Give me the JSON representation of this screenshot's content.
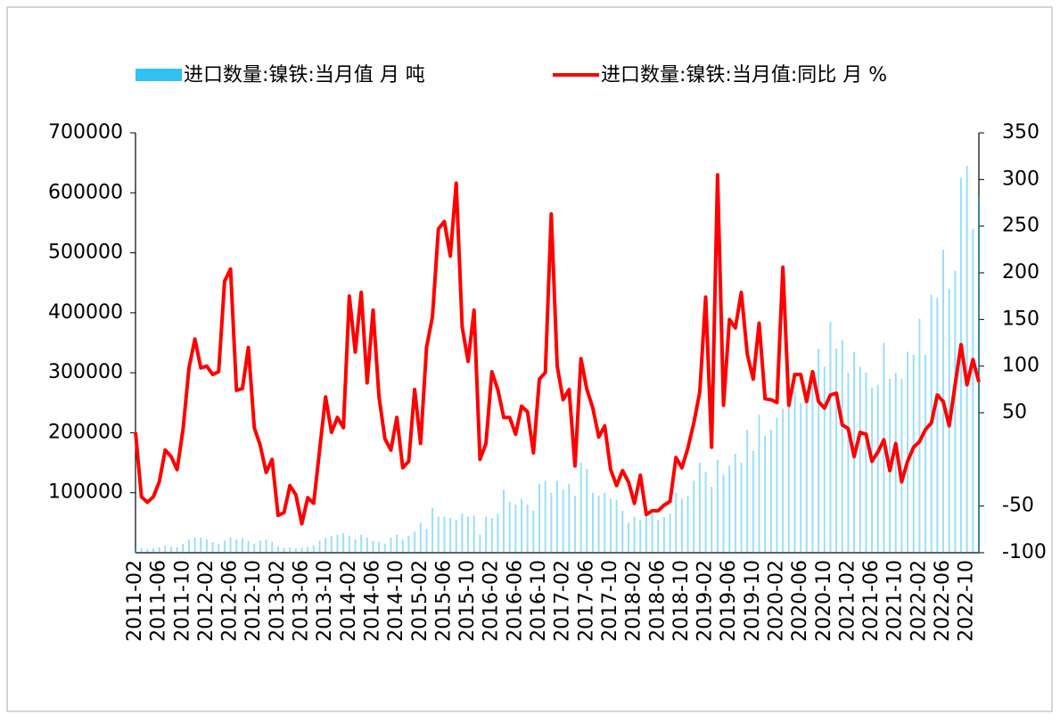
{
  "chart_data": {
    "type": "bar+line",
    "categories": [
      "2011-02",
      null,
      null,
      null,
      "2011-06",
      null,
      null,
      null,
      "2011-10",
      null,
      null,
      null,
      "2012-02",
      null,
      null,
      null,
      "2012-06",
      null,
      null,
      null,
      "2012-10",
      null,
      null,
      null,
      "2013-02",
      null,
      null,
      null,
      "2013-06",
      null,
      null,
      null,
      "2013-10",
      null,
      null,
      null,
      "2014-02",
      null,
      null,
      null,
      "2014-06",
      null,
      null,
      null,
      "2014-10",
      null,
      null,
      null,
      "2015-02",
      null,
      null,
      null,
      "2015-06",
      null,
      null,
      null,
      "2015-10",
      null,
      null,
      null,
      "2016-02",
      null,
      null,
      null,
      "2016-06",
      null,
      null,
      null,
      "2016-10",
      null,
      null,
      null,
      "2017-02",
      null,
      null,
      null,
      "2017-06",
      null,
      null,
      null,
      "2017-10",
      null,
      null,
      null,
      "2018-02",
      null,
      null,
      null,
      "2018-06",
      null,
      null,
      null,
      "2018-10",
      null,
      null,
      null,
      "2019-02",
      null,
      null,
      null,
      "2019-06",
      null,
      null,
      null,
      "2019-10",
      null,
      null,
      null,
      "2020-02",
      null,
      null,
      null,
      "2020-06",
      null,
      null,
      null,
      "2020-10",
      null,
      null,
      null,
      "2021-02",
      null,
      null,
      null,
      "2021-06",
      null,
      null,
      null,
      "2021-10",
      null,
      null,
      null,
      "2022-02",
      null,
      null,
      null,
      "2022-06",
      null,
      null,
      null,
      "2022-10",
      null,
      null
    ],
    "series": [
      {
        "name": "进口数量:镍铁:当月值 月 吨",
        "type": "bar",
        "color": "#00b0f0",
        "values": [
          10000,
          8000,
          6000,
          7000,
          9000,
          12000,
          10000,
          9000,
          15000,
          22000,
          25000,
          25000,
          22000,
          18000,
          15000,
          20000,
          25000,
          22000,
          24000,
          20000,
          15000,
          20000,
          22000,
          18000,
          10000,
          8000,
          9000,
          7000,
          8000,
          10000,
          12000,
          20000,
          25000,
          28000,
          30000,
          32000,
          28000,
          22000,
          30000,
          25000,
          20000,
          18000,
          15000,
          25000,
          30000,
          22000,
          28000,
          35000,
          50000,
          40000,
          75000,
          60000,
          60000,
          58000,
          55000,
          65000,
          60000,
          62000,
          30000,
          60000,
          58000,
          65000,
          105000,
          85000,
          80000,
          90000,
          80000,
          70000,
          115000,
          120000,
          100000,
          120000,
          105000,
          115000,
          95000,
          150000,
          140000,
          100000,
          95000,
          100000,
          90000,
          88000,
          70000,
          50000,
          60000,
          55000,
          75000,
          65000,
          55000,
          60000,
          65000,
          100000,
          90000,
          95000,
          120000,
          150000,
          135000,
          110000,
          155000,
          130000,
          145000,
          165000,
          150000,
          205000,
          170000,
          230000,
          195000,
          205000,
          225000,
          240000,
          260000,
          270000,
          250000,
          260000,
          290000,
          340000,
          310000,
          385000,
          340000,
          355000,
          300000,
          335000,
          310000,
          300000,
          275000,
          280000,
          350000,
          290000,
          300000,
          290000,
          335000,
          330000,
          390000,
          330000,
          430000,
          425000,
          505000,
          440000,
          470000,
          625000,
          645000,
          540000,
          595000
        ]
      },
      {
        "name": "进口数量:镍铁:当月值:同比 月 %",
        "type": "line",
        "axis": "y2",
        "color": "#ff0000",
        "values": [
          29,
          -40,
          -46,
          -40,
          -24,
          10,
          3,
          -11,
          32,
          98,
          129,
          98,
          100,
          91,
          94,
          191,
          204,
          74,
          76,
          120,
          34,
          15,
          -14,
          0,
          -60,
          -57,
          -28,
          -38,
          -69,
          -41,
          -47,
          10,
          67,
          29,
          45,
          34,
          175,
          115,
          179,
          82,
          160,
          67,
          22,
          10,
          45,
          -9,
          -2,
          75,
          17,
          120,
          153,
          247,
          255,
          218,
          296,
          142,
          105,
          160,
          0,
          17,
          94,
          75,
          45,
          45,
          27,
          57,
          51,
          7,
          86,
          93,
          263,
          100,
          64,
          75,
          -7,
          108,
          75,
          55,
          24,
          36,
          -11,
          -28,
          -12,
          -24,
          -47,
          -17,
          -59,
          -55,
          -55,
          -49,
          -45,
          2,
          -9,
          12,
          39,
          72,
          174,
          13,
          305,
          58,
          150,
          141,
          179,
          113,
          86,
          146,
          65,
          64,
          61,
          206,
          58,
          91,
          91,
          62,
          94,
          62,
          55,
          69,
          71,
          37,
          33,
          3,
          29,
          27,
          -2,
          8,
          21,
          -12,
          17,
          -24,
          -2,
          13,
          19,
          32,
          39,
          69,
          62,
          36,
          80,
          123,
          80,
          107,
          83
        ]
      }
    ],
    "ylim": [
      0,
      700000
    ],
    "yticks": [
      100000,
      200000,
      300000,
      400000,
      500000,
      600000,
      700000
    ],
    "y2lim": [
      -100,
      350
    ],
    "y2ticks": [
      -100,
      -50,
      50,
      100,
      150,
      200,
      250,
      300,
      350
    ],
    "legend": "top",
    "grid": false
  }
}
